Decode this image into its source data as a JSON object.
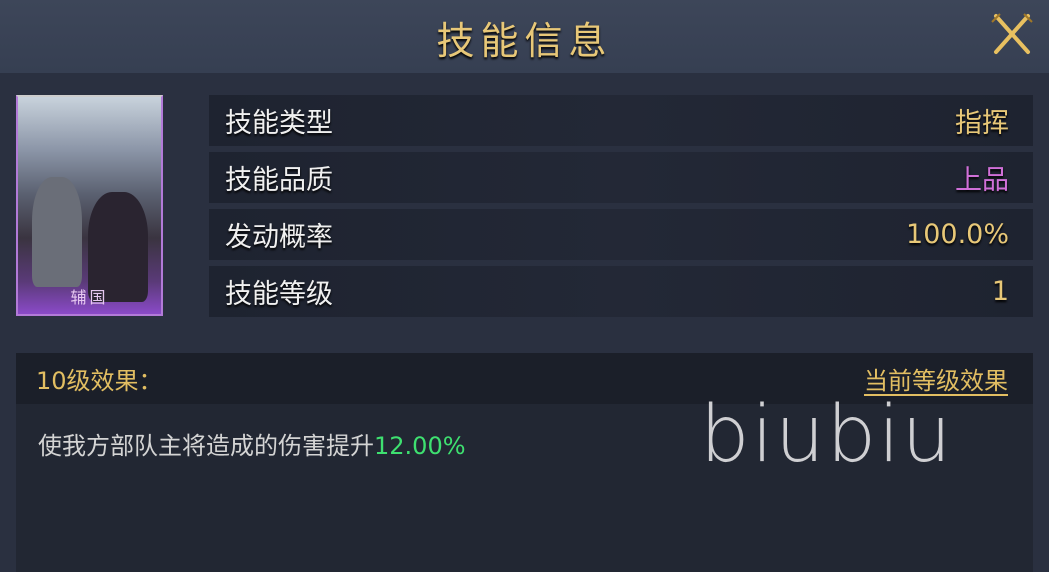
{
  "header": {
    "title": "技能信息",
    "close_icon": "crossed-swords-close-icon"
  },
  "skill_card": {
    "name": "辅国",
    "frame_color": "#b27ad8"
  },
  "attributes": [
    {
      "label": "技能类型",
      "value": "指挥",
      "color": "#e8c878"
    },
    {
      "label": "技能品质",
      "value": "上品",
      "color": "#d070d8"
    },
    {
      "label": "发动概率",
      "value": "100.0%",
      "color": "#e8c878"
    },
    {
      "label": "技能等级",
      "value": "1",
      "color": "#e8c878"
    }
  ],
  "effect": {
    "level_label": "10级效果：",
    "current_link": "当前等级效果",
    "description": "使我方部队主将造成的伤害提升",
    "value": "12.00%",
    "value_color": "#3ee070"
  },
  "watermark": "biubiu"
}
